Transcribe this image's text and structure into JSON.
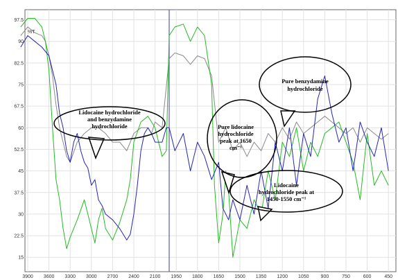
{
  "chart_data": {
    "type": "line",
    "title": "",
    "ylabel": "%T",
    "xlabel": "",
    "x_ticks": [
      3900,
      3600,
      3300,
      3000,
      2700,
      2400,
      2100,
      1950,
      1800,
      1650,
      1500,
      1350,
      1200,
      1050,
      900,
      750,
      600,
      450
    ],
    "y_ticks": [
      15,
      22.5,
      30,
      37.5,
      45,
      52.5,
      60,
      67.5,
      75,
      82.5,
      90,
      97.5
    ],
    "ylim": [
      10,
      101
    ],
    "grid": true,
    "axis_break_at": 2000,
    "colors": {
      "blue": "#2424b8",
      "green": "#22bb22",
      "gray": "#8a8a8a"
    },
    "series": [
      {
        "color": "blue",
        "x": [
          4000,
          3900,
          3800,
          3700,
          3600,
          3500,
          3450,
          3400,
          3350,
          3300,
          3250,
          3200,
          3150,
          3100,
          3050,
          3000,
          2950,
          2900,
          2850,
          2800,
          2700,
          2600,
          2500,
          2450,
          2400,
          2350,
          2300,
          2250,
          2200,
          2150,
          2100,
          2050,
          2020,
          2000,
          1960,
          1900,
          1850,
          1800,
          1750,
          1700,
          1650,
          1620,
          1580,
          1550,
          1500,
          1450,
          1400,
          1350,
          1300,
          1250,
          1200,
          1150,
          1100,
          1050,
          1000,
          950,
          900,
          850,
          800,
          750,
          700,
          650,
          600,
          550,
          500,
          450
        ],
        "y": [
          88,
          92,
          90,
          88,
          85,
          75,
          65,
          60,
          52,
          48,
          55,
          58,
          52,
          48,
          46,
          40,
          42,
          35,
          33,
          30,
          28,
          25,
          21,
          23,
          30,
          40,
          52,
          58,
          60,
          58,
          55,
          55,
          60,
          60,
          52,
          58,
          45,
          55,
          50,
          42,
          48,
          32,
          28,
          35,
          28,
          40,
          30,
          45,
          32,
          55,
          45,
          60,
          40,
          58,
          50,
          70,
          78,
          65,
          55,
          60,
          45,
          62,
          55,
          50,
          60,
          45
        ]
      },
      {
        "color": "green",
        "x": [
          4000,
          3900,
          3800,
          3700,
          3650,
          3600,
          3550,
          3500,
          3450,
          3400,
          3350,
          3300,
          3200,
          3100,
          3000,
          2950,
          2900,
          2850,
          2800,
          2700,
          2600,
          2500,
          2450,
          2400,
          2300,
          2200,
          2150,
          2100,
          2050,
          2020,
          2000,
          1960,
          1900,
          1850,
          1800,
          1750,
          1700,
          1680,
          1650,
          1620,
          1600,
          1580,
          1550,
          1500,
          1450,
          1400,
          1350,
          1300,
          1250,
          1200,
          1150,
          1100,
          1050,
          1000,
          950,
          900,
          850,
          800,
          750,
          700,
          650,
          600,
          550,
          500,
          450
        ],
        "y": [
          95,
          98,
          98,
          95,
          90,
          80,
          60,
          42,
          35,
          25,
          18,
          22,
          28,
          35,
          25,
          20,
          28,
          32,
          25,
          21,
          27,
          35,
          42,
          55,
          62,
          64,
          62,
          60,
          50,
          52,
          92,
          95,
          96,
          90,
          95,
          92,
          75,
          40,
          20,
          30,
          45,
          38,
          15,
          28,
          25,
          35,
          30,
          45,
          35,
          55,
          50,
          60,
          45,
          55,
          50,
          58,
          60,
          62,
          55,
          48,
          35,
          58,
          40,
          45,
          40
        ]
      },
      {
        "color": "gray",
        "x": [
          4000,
          3900,
          3800,
          3700,
          3650,
          3600,
          3550,
          3500,
          3450,
          3400,
          3350,
          3300,
          3200,
          3100,
          3000,
          2900,
          2800,
          2700,
          2600,
          2500,
          2400,
          2300,
          2200,
          2150,
          2100,
          2050,
          2000,
          1960,
          1900,
          1850,
          1800,
          1750,
          1700,
          1650,
          1620,
          1600,
          1550,
          1500,
          1450,
          1400,
          1350,
          1300,
          1250,
          1200,
          1150,
          1100,
          1050,
          1000,
          950,
          900,
          850,
          800,
          750,
          700,
          650,
          600,
          550,
          500,
          450
        ],
        "y": [
          92,
          95,
          93,
          92,
          90,
          85,
          78,
          68,
          60,
          55,
          50,
          48,
          55,
          58,
          60,
          60,
          58,
          55,
          55,
          52,
          58,
          60,
          60,
          58,
          62,
          60,
          84,
          86,
          85,
          82,
          85,
          84,
          78,
          55,
          58,
          60,
          52,
          55,
          50,
          55,
          52,
          58,
          55,
          60,
          56,
          62,
          58,
          60,
          62,
          64,
          62,
          60,
          58,
          60,
          55,
          60,
          58,
          56,
          58
        ]
      }
    ],
    "annotations": [
      {
        "text": [
          "Lidocaine hydrochloride",
          "and benzydamine",
          "hydrochloride"
        ]
      },
      {
        "text": [
          "Pure lidocaine",
          "hydrochloride",
          "peak at 1650",
          "cm⁻¹"
        ]
      },
      {
        "text": [
          "Pure benzydamine",
          "hydrochloride"
        ]
      },
      {
        "text": [
          "Lidocaine",
          "hydrochloride peak at",
          "1450-1550 cm⁻¹"
        ]
      }
    ]
  }
}
